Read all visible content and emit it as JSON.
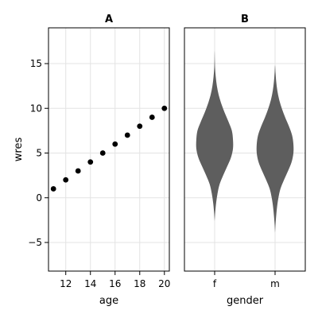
{
  "chart_data": [
    {
      "panel": "A",
      "type": "scatter",
      "title": "A",
      "xlabel": "age",
      "ylabel": "wres",
      "xlim": [
        10.6,
        20.4
      ],
      "ylim": [
        -8.2,
        19.0
      ],
      "xticks": [
        12,
        14,
        16,
        18,
        20
      ],
      "yticks": [
        -5,
        0,
        5,
        10,
        15
      ],
      "grid": true,
      "marker_color": "#000000",
      "x": [
        11,
        12,
        13,
        14,
        15,
        16,
        17,
        18,
        19,
        20
      ],
      "y": [
        1,
        2,
        3,
        4,
        5,
        6,
        7,
        8,
        9,
        10
      ]
    },
    {
      "panel": "B",
      "type": "violin",
      "title": "B",
      "xlabel": "gender",
      "ylabel": "",
      "categories": [
        "f",
        "m"
      ],
      "ylim": [
        -8.2,
        19.0
      ],
      "grid": true,
      "fill_color": "#5e5e5e",
      "violins": [
        {
          "category": "f",
          "profile": [
            [
              -2.6,
              0.0
            ],
            [
              -1.5,
              0.03
            ],
            [
              -0.5,
              0.07
            ],
            [
              0.5,
              0.13
            ],
            [
              1.5,
              0.22
            ],
            [
              2.5,
              0.38
            ],
            [
              3.5,
              0.56
            ],
            [
              4.5,
              0.73
            ],
            [
              5.5,
              0.82
            ],
            [
              6.5,
              0.82
            ],
            [
              7.5,
              0.77
            ],
            [
              8.5,
              0.62
            ],
            [
              9.5,
              0.45
            ],
            [
              10.5,
              0.3
            ],
            [
              11.5,
              0.18
            ],
            [
              12.5,
              0.1
            ],
            [
              13.5,
              0.05
            ],
            [
              14.5,
              0.02
            ],
            [
              15.5,
              0.008
            ],
            [
              16.4,
              0.0
            ]
          ]
        },
        {
          "category": "m",
          "profile": [
            [
              -3.9,
              0.0
            ],
            [
              -3.0,
              0.02
            ],
            [
              -2.0,
              0.05
            ],
            [
              -1.0,
              0.09
            ],
            [
              0.0,
              0.15
            ],
            [
              1.0,
              0.24
            ],
            [
              2.0,
              0.4
            ],
            [
              3.0,
              0.58
            ],
            [
              4.0,
              0.74
            ],
            [
              5.0,
              0.82
            ],
            [
              6.0,
              0.82
            ],
            [
              7.0,
              0.76
            ],
            [
              8.0,
              0.62
            ],
            [
              9.0,
              0.45
            ],
            [
              10.0,
              0.3
            ],
            [
              11.0,
              0.18
            ],
            [
              12.0,
              0.1
            ],
            [
              13.0,
              0.05
            ],
            [
              14.0,
              0.02
            ],
            [
              14.8,
              0.0
            ]
          ]
        }
      ]
    }
  ]
}
